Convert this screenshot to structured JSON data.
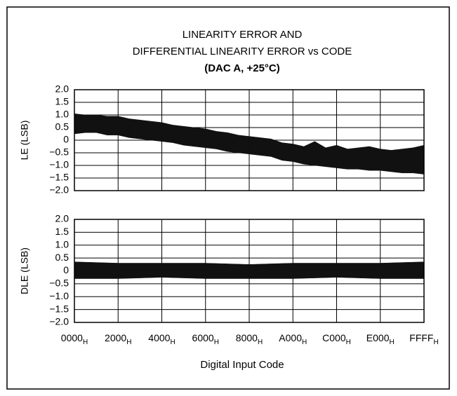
{
  "chart_data": [
    {
      "type": "band",
      "title": [
        "LINEARITY ERROR AND",
        "DIFFERENTIAL LINEARITY ERROR vs CODE",
        "(DAC A, +25°C)"
      ],
      "ylabel": "LE (LSB)",
      "color": "#111111",
      "xlim": [
        0,
        65535
      ],
      "xticks": [
        0,
        8192,
        16384,
        24576,
        32768,
        40960,
        49152,
        57344,
        65535
      ],
      "ylim": [
        -2,
        2
      ],
      "yticks": [
        {
          "value": 2,
          "label": "2.0"
        },
        {
          "value": 1.5,
          "label": "1.5"
        },
        {
          "value": 1,
          "label": "1.0"
        },
        {
          "value": 0.5,
          "label": "0.5"
        },
        0,
        {
          "value": -0.5,
          "label": "−0.5"
        },
        {
          "value": -1,
          "label": "−1.0"
        },
        {
          "value": -1.5,
          "label": "−1.5"
        },
        {
          "value": -2,
          "label": "−2.0"
        }
      ],
      "grid": true,
      "x": [
        0,
        2048,
        4096,
        6144,
        8192,
        10240,
        12288,
        14336,
        16384,
        18432,
        20480,
        22528,
        24576,
        26624,
        28672,
        30720,
        32768,
        34816,
        36864,
        38912,
        40960,
        43008,
        45056,
        47104,
        49152,
        51200,
        53248,
        55296,
        57344,
        59392,
        61440,
        63488,
        65535
      ],
      "upper": [
        1.05,
        1.0,
        1.0,
        0.95,
        0.95,
        0.85,
        0.8,
        0.75,
        0.7,
        0.6,
        0.55,
        0.5,
        0.45,
        0.35,
        0.3,
        0.2,
        0.15,
        0.1,
        0.05,
        -0.1,
        -0.15,
        -0.25,
        -0.05,
        -0.3,
        -0.2,
        -0.35,
        -0.3,
        -0.25,
        -0.35,
        -0.4,
        -0.35,
        -0.3,
        -0.2
      ],
      "lower": [
        0.25,
        0.3,
        0.3,
        0.2,
        0.2,
        0.1,
        0.05,
        0.0,
        -0.05,
        -0.1,
        -0.2,
        -0.25,
        -0.3,
        -0.35,
        -0.45,
        -0.5,
        -0.55,
        -0.6,
        -0.65,
        -0.8,
        -0.85,
        -0.95,
        -1.0,
        -1.05,
        -1.1,
        -1.15,
        -1.15,
        -1.2,
        -1.2,
        -1.25,
        -1.3,
        -1.3,
        -1.35
      ]
    },
    {
      "type": "band",
      "ylabel": "DLE (LSB)",
      "xlabel": "Digital Input Code",
      "color": "#111111",
      "xlim": [
        0,
        65535
      ],
      "xticks": [
        {
          "value": 0,
          "label": "0000"
        },
        {
          "value": 8192,
          "label": "2000"
        },
        {
          "value": 16384,
          "label": "4000"
        },
        {
          "value": 24576,
          "label": "6000"
        },
        {
          "value": 32768,
          "label": "8000"
        },
        {
          "value": 40960,
          "label": "A000"
        },
        {
          "value": 49152,
          "label": "C000"
        },
        {
          "value": 57344,
          "label": "E000"
        },
        {
          "value": 65535,
          "label": "FFFF"
        }
      ],
      "xtick_subscript": "H",
      "ylim": [
        -2,
        2
      ],
      "yticks": [
        {
          "value": 2,
          "label": "2.0"
        },
        {
          "value": 1.5,
          "label": "1.5"
        },
        {
          "value": 1,
          "label": "1.0"
        },
        {
          "value": 0.5,
          "label": "0.5"
        },
        0,
        {
          "value": -0.5,
          "label": "−0.5"
        },
        {
          "value": -1,
          "label": "−1.0"
        },
        {
          "value": -1.5,
          "label": "−1.5"
        },
        {
          "value": -2,
          "label": "−2.0"
        }
      ],
      "grid": true,
      "x": [
        0,
        8192,
        16384,
        24576,
        32768,
        40960,
        49152,
        57344,
        65535
      ],
      "upper": [
        0.35,
        0.3,
        0.3,
        0.3,
        0.25,
        0.3,
        0.3,
        0.3,
        0.35
      ],
      "lower": [
        -0.3,
        -0.3,
        -0.25,
        -0.3,
        -0.3,
        -0.3,
        -0.25,
        -0.3,
        -0.3
      ]
    }
  ]
}
